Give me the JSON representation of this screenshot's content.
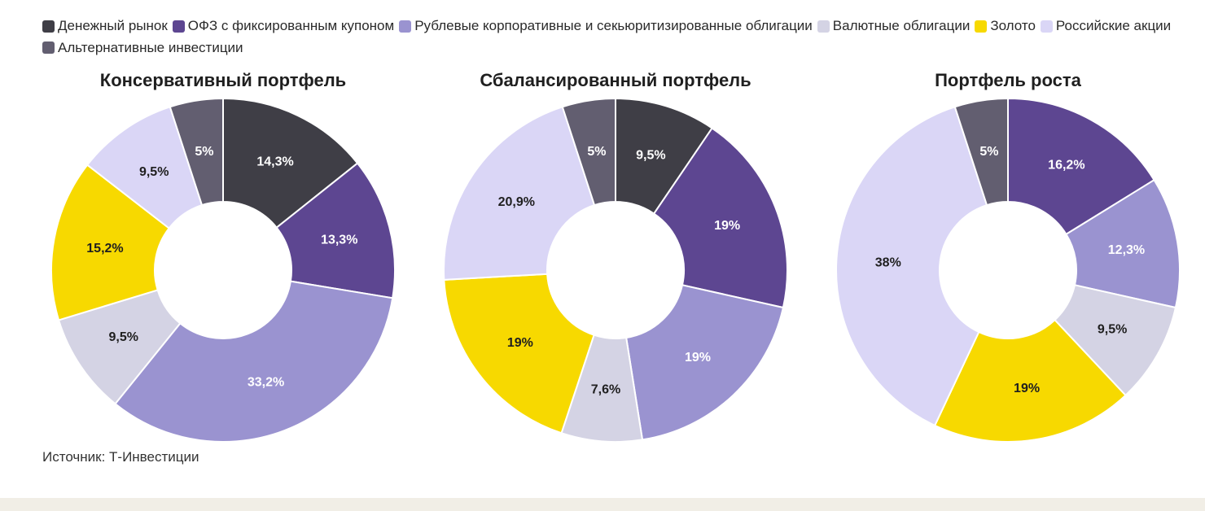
{
  "legend": [
    {
      "label": "Денежный рынок",
      "color": "#3f3e46"
    },
    {
      "label": "ОФЗ с фиксированным купоном",
      "color": "#5d4691"
    },
    {
      "label": "Рублевые корпоративные и секьюритизированные облигации",
      "color": "#9a93d0"
    },
    {
      "label": "Валютные облигации",
      "color": "#d4d3e4"
    },
    {
      "label": "Золото",
      "color": "#f7d900"
    },
    {
      "label": "Российские акции",
      "color": "#dad6f6"
    },
    {
      "label": "Альтернативные инвестиции",
      "color": "#625e70"
    }
  ],
  "chart_data": [
    {
      "type": "pie",
      "title": "Консервативный портфель",
      "slices": [
        {
          "category": "Денежный рынок",
          "value": 14.3,
          "label": "14,3%"
        },
        {
          "category": "ОФЗ с фиксированным купоном",
          "value": 13.3,
          "label": "13,3%"
        },
        {
          "category": "Рублевые корпоративные и секьюритизированные облигации",
          "value": 33.2,
          "label": "33,2%"
        },
        {
          "category": "Валютные облигации",
          "value": 9.5,
          "label": "9,5%"
        },
        {
          "category": "Золото",
          "value": 15.2,
          "label": "15,2%"
        },
        {
          "category": "Российские акции",
          "value": 9.5,
          "label": "9,5%"
        },
        {
          "category": "Альтернативные инвестиции",
          "value": 5,
          "label": "5%"
        }
      ]
    },
    {
      "type": "pie",
      "title": "Сбалансированный портфель",
      "slices": [
        {
          "category": "Денежный рынок",
          "value": 9.5,
          "label": "9,5%"
        },
        {
          "category": "ОФЗ с фиксированным купоном",
          "value": 19,
          "label": "19%"
        },
        {
          "category": "Рублевые корпоративные и секьюритизированные облигации",
          "value": 19,
          "label": "19%"
        },
        {
          "category": "Валютные облигации",
          "value": 7.6,
          "label": "7,6%"
        },
        {
          "category": "Золото",
          "value": 19,
          "label": "19%"
        },
        {
          "category": "Российские акции",
          "value": 20.9,
          "label": "20,9%"
        },
        {
          "category": "Альтернативные инвестиции",
          "value": 5,
          "label": "5%"
        }
      ]
    },
    {
      "type": "pie",
      "title": "Портфель роста",
      "slices": [
        {
          "category": "ОФЗ с фиксированным купоном",
          "value": 16.2,
          "label": "16,2%"
        },
        {
          "category": "Рублевые корпоративные и секьюритизированные облигации",
          "value": 12.3,
          "label": "12,3%"
        },
        {
          "category": "Валютные облигации",
          "value": 9.5,
          "label": "9,5%"
        },
        {
          "category": "Золото",
          "value": 19,
          "label": "19%"
        },
        {
          "category": "Российские акции",
          "value": 38,
          "label": "38%"
        },
        {
          "category": "Альтернативные инвестиции",
          "value": 5,
          "label": "5%"
        }
      ]
    }
  ],
  "source": "Источник: Т-Инвестиции"
}
